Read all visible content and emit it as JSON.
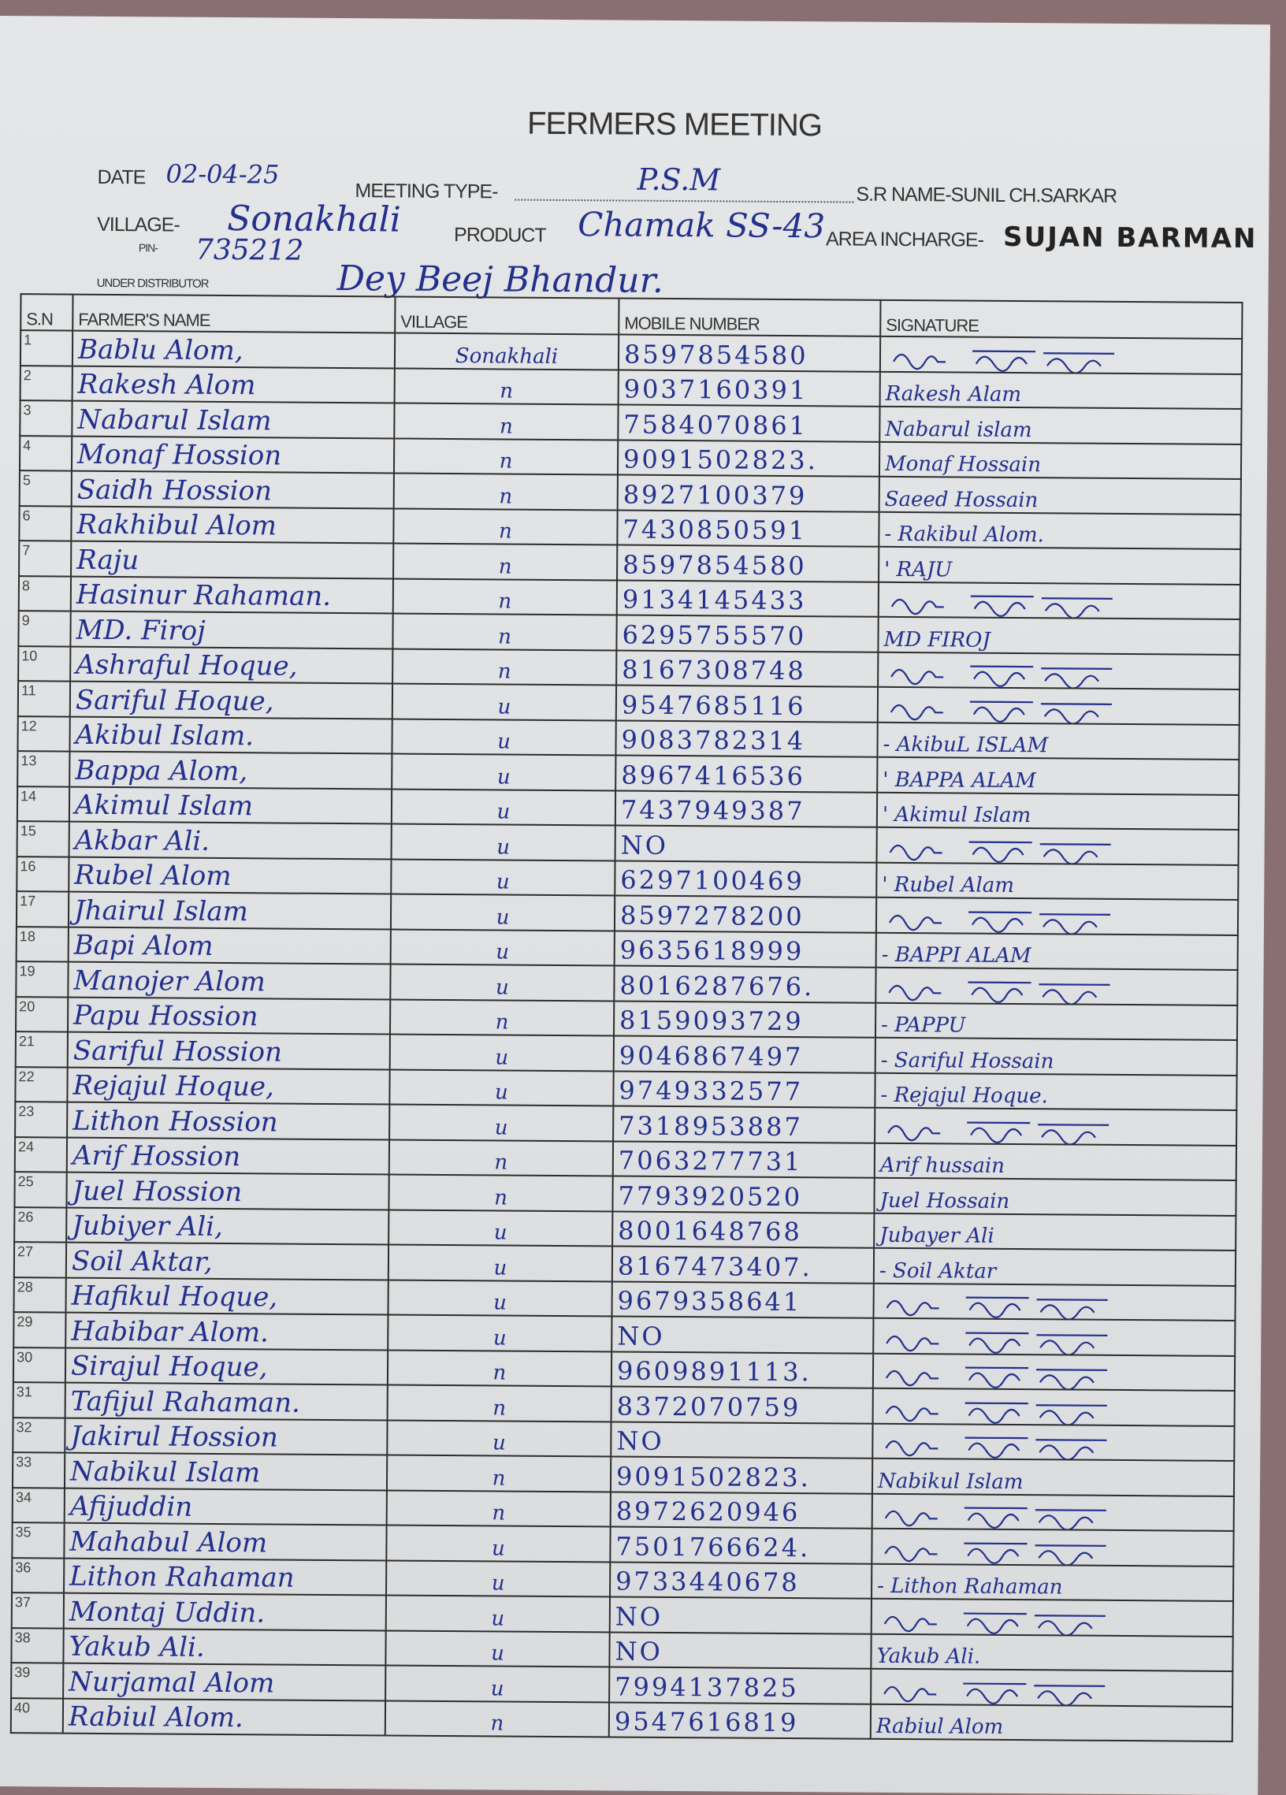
{
  "header": {
    "title": "FERMERS MEETING",
    "date_label": "DATE",
    "date": "02-04-25",
    "meeting_type_label": "MEETING TYPE-",
    "meeting_type": "P.S.M",
    "sr_name": "S.R NAME-SUNIL CH.SARKAR",
    "village_label": "VILLAGE-",
    "village": "Sonakhali",
    "product_label": "PRODUCT",
    "product": "Chamak SS-43",
    "area_incharge_label": "AREA INCHARGE-",
    "area_incharge": "SUJAN BARMAN",
    "pin_label": "PIN-",
    "pin": "735212",
    "distributor_label": "UNDER DISTRIBUTOR",
    "distributor": "Dey Beej Bhandur."
  },
  "table": {
    "columns": [
      "S.N",
      "FARMER'S NAME",
      "VILLAGE",
      "MOBILE NUMBER",
      "SIGNATURE"
    ],
    "rows": [
      {
        "sn": "1",
        "name": "Bablu Alom,",
        "village": "Sonakhali",
        "mobile": "8597854580",
        "signature": ""
      },
      {
        "sn": "2",
        "name": "Rakesh Alom",
        "village": "n",
        "mobile": "9037160391",
        "signature": "Rakesh Alam"
      },
      {
        "sn": "3",
        "name": "Nabarul Islam",
        "village": "n",
        "mobile": "7584070861",
        "signature": "Nabarul islam"
      },
      {
        "sn": "4",
        "name": "Monaf Hossion",
        "village": "n",
        "mobile": "9091502823.",
        "signature": "Monaf Hossain"
      },
      {
        "sn": "5",
        "name": "Saidh Hossion",
        "village": "n",
        "mobile": "8927100379",
        "signature": "Saeed Hossain"
      },
      {
        "sn": "6",
        "name": "Rakhibul Alom",
        "village": "n",
        "mobile": "7430850591",
        "signature": "- Rakibul Alom."
      },
      {
        "sn": "7",
        "name": "Raju",
        "village": "n",
        "mobile": "8597854580",
        "signature": "' RAJU"
      },
      {
        "sn": "8",
        "name": "Hasinur Rahaman.",
        "village": "n",
        "mobile": "9134145433",
        "signature": ""
      },
      {
        "sn": "9",
        "name": "MD. Firoj",
        "village": "n",
        "mobile": "6295755570",
        "signature": "MD FIROJ"
      },
      {
        "sn": "10",
        "name": "Ashraful Hoque,",
        "village": "n",
        "mobile": "8167308748",
        "signature": ""
      },
      {
        "sn": "11",
        "name": "Sariful Hoque,",
        "village": "u",
        "mobile": "9547685116",
        "signature": ""
      },
      {
        "sn": "12",
        "name": "Akibul Islam.",
        "village": "u",
        "mobile": "9083782314",
        "signature": "- AkibuL ISLAM"
      },
      {
        "sn": "13",
        "name": "Bappa Alom,",
        "village": "u",
        "mobile": "8967416536",
        "signature": "' BAPPA ALAM"
      },
      {
        "sn": "14",
        "name": "Akimul Islam",
        "village": "u",
        "mobile": "7437949387",
        "signature": "' Akimul Islam"
      },
      {
        "sn": "15",
        "name": "Akbar Ali.",
        "village": "u",
        "mobile": "NO",
        "signature": ""
      },
      {
        "sn": "16",
        "name": "Rubel Alom",
        "village": "u",
        "mobile": "6297100469",
        "signature": "' Rubel Alam"
      },
      {
        "sn": "17",
        "name": "Jhairul Islam",
        "village": "u",
        "mobile": "8597278200",
        "signature": ""
      },
      {
        "sn": "18",
        "name": "Bapi Alom",
        "village": "u",
        "mobile": "9635618999",
        "signature": "- BAPPI ALAM"
      },
      {
        "sn": "19",
        "name": "Manojer Alom",
        "village": "u",
        "mobile": "8016287676.",
        "signature": ""
      },
      {
        "sn": "20",
        "name": "Papu Hossion",
        "village": "n",
        "mobile": "8159093729",
        "signature": "- PAPPU"
      },
      {
        "sn": "21",
        "name": "Sariful Hossion",
        "village": "u",
        "mobile": "9046867497",
        "signature": "- Sariful Hossain"
      },
      {
        "sn": "22",
        "name": "Rejajul Hoque,",
        "village": "u",
        "mobile": "9749332577",
        "signature": "- Rejajul Hoque."
      },
      {
        "sn": "23",
        "name": "Lithon Hossion",
        "village": "u",
        "mobile": "7318953887",
        "signature": ""
      },
      {
        "sn": "24",
        "name": "Arif Hossion",
        "village": "n",
        "mobile": "7063277731",
        "signature": "Arif hussain"
      },
      {
        "sn": "25",
        "name": "Juel Hossion",
        "village": "n",
        "mobile": "7793920520",
        "signature": "Juel Hossain"
      },
      {
        "sn": "26",
        "name": "Jubiyer Ali,",
        "village": "u",
        "mobile": "8001648768",
        "signature": "Jubayer Ali"
      },
      {
        "sn": "27",
        "name": "Soil Aktar,",
        "village": "u",
        "mobile": "8167473407.",
        "signature": "- Soil Aktar"
      },
      {
        "sn": "28",
        "name": "Hafikul Hoque,",
        "village": "u",
        "mobile": "9679358641",
        "signature": ""
      },
      {
        "sn": "29",
        "name": "Habibar Alom.",
        "village": "u",
        "mobile": "NO",
        "signature": ""
      },
      {
        "sn": "30",
        "name": "Sirajul Hoque,",
        "village": "n",
        "mobile": "9609891113.",
        "signature": ""
      },
      {
        "sn": "31",
        "name": "Tafijul Rahaman.",
        "village": "n",
        "mobile": "8372070759",
        "signature": ""
      },
      {
        "sn": "32",
        "name": "Jakirul Hossion",
        "village": "u",
        "mobile": "NO",
        "signature": ""
      },
      {
        "sn": "33",
        "name": "Nabikul Islam",
        "village": "n",
        "mobile": "9091502823.",
        "signature": "Nabikul Islam"
      },
      {
        "sn": "34",
        "name": "Afijuddin",
        "village": "n",
        "mobile": "8972620946",
        "signature": ""
      },
      {
        "sn": "35",
        "name": "Mahabul Alom",
        "village": "u",
        "mobile": "7501766624.",
        "signature": ""
      },
      {
        "sn": "36",
        "name": "Lithon Rahaman",
        "village": "u",
        "mobile": "9733440678",
        "signature": "- Lithon Rahaman"
      },
      {
        "sn": "37",
        "name": "Montaj Uddin.",
        "village": "u",
        "mobile": "NO",
        "signature": ""
      },
      {
        "sn": "38",
        "name": "Yakub Ali.",
        "village": "u",
        "mobile": "NO",
        "signature": "Yakub Ali."
      },
      {
        "sn": "39",
        "name": "Nurjamal Alom",
        "village": "u",
        "mobile": "7994137825",
        "signature": ""
      },
      {
        "sn": "40",
        "name": "Rabiul Alom.",
        "village": "n",
        "mobile": "9547616819",
        "signature": "Rabiul Alom"
      }
    ]
  },
  "colors": {
    "ink": "#23308c",
    "paper": "#e0e2e4",
    "print": "#333333"
  }
}
